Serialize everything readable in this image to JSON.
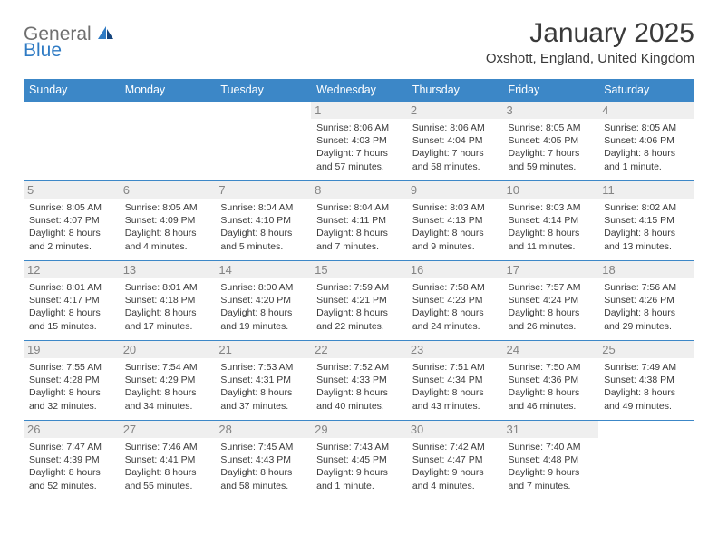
{
  "brand": {
    "general": "General",
    "blue": "Blue"
  },
  "header": {
    "month_title": "January 2025",
    "location": "Oxshott, England, United Kingdom"
  },
  "colors": {
    "header_bg": "#3c87c7",
    "header_fg": "#ffffff",
    "border": "#3c87c7",
    "daynum_bg": "#efefef",
    "daynum_fg": "#848484",
    "text": "#3a3a3a"
  },
  "day_names": [
    "Sunday",
    "Monday",
    "Tuesday",
    "Wednesday",
    "Thursday",
    "Friday",
    "Saturday"
  ],
  "weeks": [
    [
      {
        "n": "",
        "sr": "",
        "ss": "",
        "dl": ""
      },
      {
        "n": "",
        "sr": "",
        "ss": "",
        "dl": ""
      },
      {
        "n": "",
        "sr": "",
        "ss": "",
        "dl": ""
      },
      {
        "n": "1",
        "sr": "8:06 AM",
        "ss": "4:03 PM",
        "dl": "7 hours and 57 minutes."
      },
      {
        "n": "2",
        "sr": "8:06 AM",
        "ss": "4:04 PM",
        "dl": "7 hours and 58 minutes."
      },
      {
        "n": "3",
        "sr": "8:05 AM",
        "ss": "4:05 PM",
        "dl": "7 hours and 59 minutes."
      },
      {
        "n": "4",
        "sr": "8:05 AM",
        "ss": "4:06 PM",
        "dl": "8 hours and 1 minute."
      }
    ],
    [
      {
        "n": "5",
        "sr": "8:05 AM",
        "ss": "4:07 PM",
        "dl": "8 hours and 2 minutes."
      },
      {
        "n": "6",
        "sr": "8:05 AM",
        "ss": "4:09 PM",
        "dl": "8 hours and 4 minutes."
      },
      {
        "n": "7",
        "sr": "8:04 AM",
        "ss": "4:10 PM",
        "dl": "8 hours and 5 minutes."
      },
      {
        "n": "8",
        "sr": "8:04 AM",
        "ss": "4:11 PM",
        "dl": "8 hours and 7 minutes."
      },
      {
        "n": "9",
        "sr": "8:03 AM",
        "ss": "4:13 PM",
        "dl": "8 hours and 9 minutes."
      },
      {
        "n": "10",
        "sr": "8:03 AM",
        "ss": "4:14 PM",
        "dl": "8 hours and 11 minutes."
      },
      {
        "n": "11",
        "sr": "8:02 AM",
        "ss": "4:15 PM",
        "dl": "8 hours and 13 minutes."
      }
    ],
    [
      {
        "n": "12",
        "sr": "8:01 AM",
        "ss": "4:17 PM",
        "dl": "8 hours and 15 minutes."
      },
      {
        "n": "13",
        "sr": "8:01 AM",
        "ss": "4:18 PM",
        "dl": "8 hours and 17 minutes."
      },
      {
        "n": "14",
        "sr": "8:00 AM",
        "ss": "4:20 PM",
        "dl": "8 hours and 19 minutes."
      },
      {
        "n": "15",
        "sr": "7:59 AM",
        "ss": "4:21 PM",
        "dl": "8 hours and 22 minutes."
      },
      {
        "n": "16",
        "sr": "7:58 AM",
        "ss": "4:23 PM",
        "dl": "8 hours and 24 minutes."
      },
      {
        "n": "17",
        "sr": "7:57 AM",
        "ss": "4:24 PM",
        "dl": "8 hours and 26 minutes."
      },
      {
        "n": "18",
        "sr": "7:56 AM",
        "ss": "4:26 PM",
        "dl": "8 hours and 29 minutes."
      }
    ],
    [
      {
        "n": "19",
        "sr": "7:55 AM",
        "ss": "4:28 PM",
        "dl": "8 hours and 32 minutes."
      },
      {
        "n": "20",
        "sr": "7:54 AM",
        "ss": "4:29 PM",
        "dl": "8 hours and 34 minutes."
      },
      {
        "n": "21",
        "sr": "7:53 AM",
        "ss": "4:31 PM",
        "dl": "8 hours and 37 minutes."
      },
      {
        "n": "22",
        "sr": "7:52 AM",
        "ss": "4:33 PM",
        "dl": "8 hours and 40 minutes."
      },
      {
        "n": "23",
        "sr": "7:51 AM",
        "ss": "4:34 PM",
        "dl": "8 hours and 43 minutes."
      },
      {
        "n": "24",
        "sr": "7:50 AM",
        "ss": "4:36 PM",
        "dl": "8 hours and 46 minutes."
      },
      {
        "n": "25",
        "sr": "7:49 AM",
        "ss": "4:38 PM",
        "dl": "8 hours and 49 minutes."
      }
    ],
    [
      {
        "n": "26",
        "sr": "7:47 AM",
        "ss": "4:39 PM",
        "dl": "8 hours and 52 minutes."
      },
      {
        "n": "27",
        "sr": "7:46 AM",
        "ss": "4:41 PM",
        "dl": "8 hours and 55 minutes."
      },
      {
        "n": "28",
        "sr": "7:45 AM",
        "ss": "4:43 PM",
        "dl": "8 hours and 58 minutes."
      },
      {
        "n": "29",
        "sr": "7:43 AM",
        "ss": "4:45 PM",
        "dl": "9 hours and 1 minute."
      },
      {
        "n": "30",
        "sr": "7:42 AM",
        "ss": "4:47 PM",
        "dl": "9 hours and 4 minutes."
      },
      {
        "n": "31",
        "sr": "7:40 AM",
        "ss": "4:48 PM",
        "dl": "9 hours and 7 minutes."
      },
      {
        "n": "",
        "sr": "",
        "ss": "",
        "dl": ""
      }
    ]
  ],
  "labels": {
    "sunrise": "Sunrise: ",
    "sunset": "Sunset: ",
    "daylight": "Daylight: "
  }
}
